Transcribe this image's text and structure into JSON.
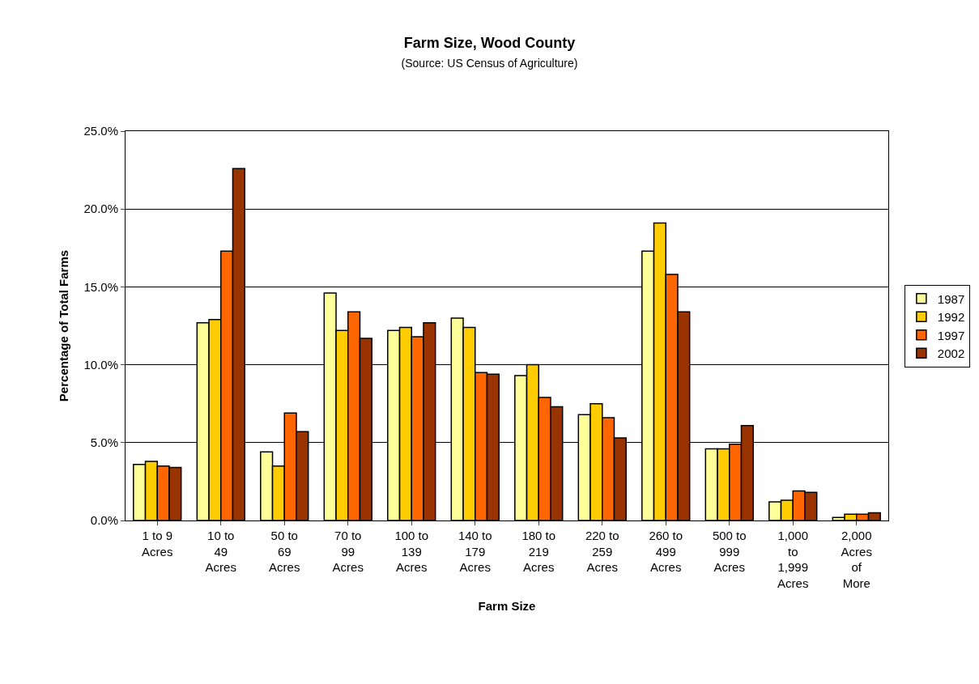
{
  "chart_data": {
    "type": "bar",
    "title": "Farm Size, Wood County",
    "subtitle": "(Source: US Census of Agriculture)",
    "xlabel": "Farm Size",
    "ylabel": "Percentage of Total Farms",
    "categories": [
      "1 to 9\nAcres",
      "10 to\n49\nAcres",
      "50 to\n69\nAcres",
      "70 to\n99\nAcres",
      "100 to\n139\nAcres",
      "140 to\n179\nAcres",
      "180 to\n219\nAcres",
      "220 to\n259\nAcres",
      "260 to\n499\nAcres",
      "500 to\n999\nAcres",
      "1,000\nto\n1,999\nAcres",
      "2,000\nAcres\nof\nMore"
    ],
    "series": [
      {
        "name": "1987",
        "color": "#ffff99",
        "values": [
          3.6,
          12.7,
          4.4,
          14.6,
          12.2,
          13.0,
          9.3,
          6.8,
          17.3,
          4.6,
          1.2,
          0.2
        ]
      },
      {
        "name": "1992",
        "color": "#ffcc00",
        "values": [
          3.8,
          12.9,
          3.5,
          12.2,
          12.4,
          12.4,
          10.0,
          7.5,
          19.1,
          4.6,
          1.3,
          0.4
        ]
      },
      {
        "name": "1997",
        "color": "#ff6600",
        "values": [
          3.5,
          17.3,
          6.9,
          13.4,
          11.8,
          9.5,
          7.9,
          6.6,
          15.8,
          4.9,
          1.9,
          0.4
        ]
      },
      {
        "name": "2002",
        "color": "#993300",
        "values": [
          3.4,
          22.6,
          5.7,
          11.7,
          12.7,
          9.4,
          7.3,
          5.3,
          13.4,
          6.1,
          1.8,
          0.5
        ]
      }
    ],
    "ylim": [
      0,
      25
    ],
    "yticks": [
      {
        "value": 0,
        "label": "0.0%"
      },
      {
        "value": 5,
        "label": "5.0%"
      },
      {
        "value": 10,
        "label": "10.0%"
      },
      {
        "value": 15,
        "label": "15.0%"
      },
      {
        "value": 20,
        "label": "20.0%"
      },
      {
        "value": 25,
        "label": "25.0%"
      }
    ],
    "grid": "y",
    "legend": "right"
  }
}
